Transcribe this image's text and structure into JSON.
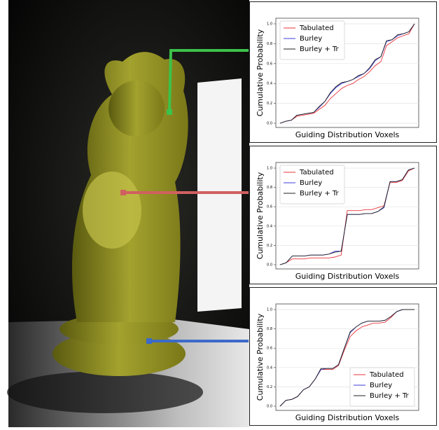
{
  "chart_data": [
    {
      "type": "line",
      "ylabel": "Cumulative Probability",
      "xlabel": "Guiding Distribution Voxels",
      "ylim": [
        0,
        1
      ],
      "yticks": [
        {
          "value": 0,
          "label": "0.0"
        },
        0.2,
        0.4,
        0.6,
        0.8,
        {
          "value": 1,
          "label": "1.0"
        }
      ],
      "grid": true,
      "legend": "upper left",
      "series": [
        {
          "name": "Tabulated",
          "color": "#e8333a",
          "values": [
            0,
            0.02,
            0.03,
            0.07,
            0.08,
            0.09,
            0.1,
            0.14,
            0.18,
            0.25,
            0.3,
            0.35,
            0.38,
            0.4,
            0.44,
            0.47,
            0.52,
            0.58,
            0.62,
            0.78,
            0.82,
            0.86,
            0.88,
            0.9,
            1
          ]
        },
        {
          "name": "Burley",
          "color": "#3c3cd8",
          "values": [
            0,
            0.02,
            0.03,
            0.08,
            0.09,
            0.1,
            0.11,
            0.16,
            0.22,
            0.3,
            0.36,
            0.4,
            0.42,
            0.44,
            0.47,
            0.5,
            0.55,
            0.63,
            0.67,
            0.82,
            0.84,
            0.88,
            0.9,
            0.92,
            1
          ]
        },
        {
          "name": "Burley + Tr",
          "color": "#222222",
          "values": [
            0,
            0.02,
            0.03,
            0.08,
            0.09,
            0.1,
            0.11,
            0.17,
            0.22,
            0.31,
            0.37,
            0.41,
            0.42,
            0.44,
            0.48,
            0.5,
            0.56,
            0.64,
            0.67,
            0.83,
            0.84,
            0.89,
            0.9,
            0.92,
            1
          ]
        }
      ]
    },
    {
      "type": "line",
      "ylabel": "Cumulative Probability",
      "xlabel": "Guiding Distribution Voxels",
      "ylim": [
        0,
        1
      ],
      "yticks": [
        {
          "value": 0,
          "label": "0.0"
        },
        0.2,
        0.4,
        0.6,
        0.8,
        {
          "value": 1,
          "label": "1.0"
        }
      ],
      "grid": true,
      "legend": "upper left",
      "series": [
        {
          "name": "Tabulated",
          "color": "#e8333a",
          "values": [
            0,
            0.02,
            0.06,
            0.06,
            0.06,
            0.07,
            0.07,
            0.07,
            0.07,
            0.08,
            0.1,
            0.56,
            0.56,
            0.56,
            0.57,
            0.57,
            0.59,
            0.61,
            0.85,
            0.85,
            0.87,
            0.97,
            1
          ]
        },
        {
          "name": "Burley",
          "color": "#3c3cd8",
          "values": [
            0,
            0.02,
            0.09,
            0.09,
            0.09,
            0.1,
            0.1,
            0.1,
            0.11,
            0.14,
            0.14,
            0.52,
            0.52,
            0.52,
            0.53,
            0.53,
            0.55,
            0.59,
            0.86,
            0.86,
            0.88,
            0.98,
            1
          ]
        },
        {
          "name": "Burley + Tr",
          "color": "#222222",
          "values": [
            0,
            0.02,
            0.09,
            0.09,
            0.09,
            0.1,
            0.1,
            0.1,
            0.11,
            0.13,
            0.14,
            0.52,
            0.52,
            0.52,
            0.53,
            0.53,
            0.55,
            0.6,
            0.86,
            0.86,
            0.88,
            0.98,
            1
          ]
        }
      ]
    },
    {
      "type": "line",
      "ylabel": "Cumulative Probability",
      "xlabel": "Guiding Distribution Voxels",
      "ylim": [
        0,
        1
      ],
      "yticks": [
        {
          "value": 0,
          "label": "0.0"
        },
        0.2,
        0.4,
        0.6,
        0.8,
        {
          "value": 1,
          "label": "1.0"
        }
      ],
      "grid": true,
      "legend": "lower right",
      "series": [
        {
          "name": "Tabulated",
          "color": "#e8333a",
          "values": [
            0,
            0.06,
            0.07,
            0.1,
            0.17,
            0.2,
            0.28,
            0.38,
            0.38,
            0.38,
            0.42,
            0.58,
            0.72,
            0.78,
            0.82,
            0.84,
            0.86,
            0.86,
            0.87,
            0.92,
            0.98,
            1,
            1,
            1
          ]
        },
        {
          "name": "Burley",
          "color": "#3c3cd8",
          "values": [
            0,
            0.06,
            0.07,
            0.1,
            0.17,
            0.2,
            0.28,
            0.38,
            0.39,
            0.39,
            0.43,
            0.6,
            0.76,
            0.82,
            0.86,
            0.88,
            0.88,
            0.88,
            0.89,
            0.93,
            0.98,
            1,
            1,
            1
          ]
        },
        {
          "name": "Burley + Tr",
          "color": "#222222",
          "values": [
            0,
            0.06,
            0.07,
            0.1,
            0.17,
            0.2,
            0.28,
            0.39,
            0.39,
            0.39,
            0.43,
            0.6,
            0.77,
            0.82,
            0.86,
            0.88,
            0.88,
            0.88,
            0.89,
            0.93,
            0.98,
            1,
            1,
            1
          ]
        }
      ]
    }
  ]
}
